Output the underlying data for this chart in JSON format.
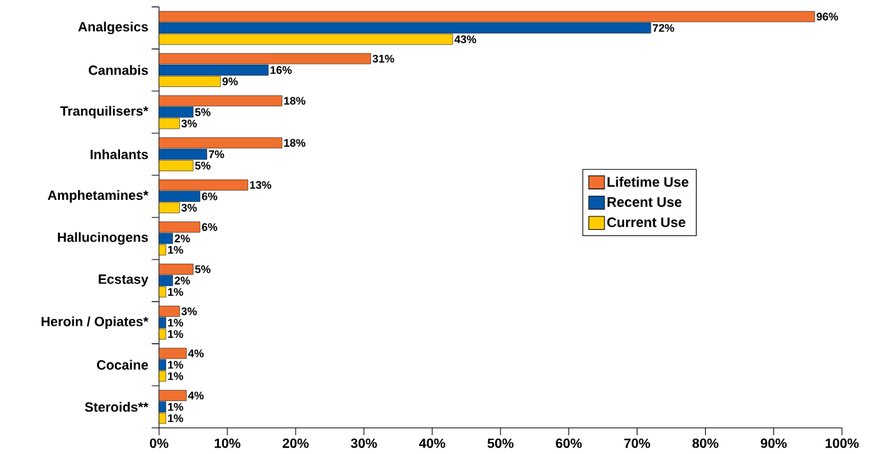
{
  "chart_data": {
    "type": "bar",
    "orientation": "horizontal",
    "categories": [
      "Analgesics",
      "Cannabis",
      "Tranquilisers*",
      "Inhalants",
      "Amphetamines*",
      "Hallucinogens",
      "Ecstasy",
      "Heroin / Opiates*",
      "Cocaine",
      "Steroids**"
    ],
    "series": [
      {
        "name": "Lifetime Use",
        "color": "#f07030",
        "values": [
          96,
          31,
          18,
          18,
          13,
          6,
          5,
          3,
          4,
          4
        ],
        "value_labels": [
          "96%",
          "31%",
          "18%",
          "18%",
          "13%",
          "6%",
          "5%",
          "3%",
          "4%",
          "4%"
        ]
      },
      {
        "name": "Recent Use",
        "color": "#0057a8",
        "values": [
          72,
          16,
          5,
          7,
          6,
          2,
          2,
          1,
          1,
          1
        ],
        "value_labels": [
          "72%",
          "16%",
          "5%",
          "7%",
          "6%",
          "2%",
          "2%",
          "1%",
          "1%",
          "1%"
        ]
      },
      {
        "name": "Current Use",
        "color": "#ffcc00",
        "values": [
          43,
          9,
          3,
          5,
          3,
          1,
          1,
          1,
          1,
          1
        ],
        "value_labels": [
          "43%",
          "9%",
          "3%",
          "5%",
          "3%",
          "1%",
          "1%",
          "1%",
          "1%",
          "1%"
        ]
      }
    ],
    "xlim": [
      0,
      100
    ],
    "xticks": [
      {
        "value": 0,
        "label": "0%"
      },
      {
        "value": 10,
        "label": "10%"
      },
      {
        "value": 20,
        "label": "20%"
      },
      {
        "value": 30,
        "label": "30%"
      },
      {
        "value": 40,
        "label": "40%"
      },
      {
        "value": 50,
        "label": "50%"
      },
      {
        "value": 60,
        "label": "60%"
      },
      {
        "value": 70,
        "label": "70%"
      },
      {
        "value": 80,
        "label": "80%"
      },
      {
        "value": 90,
        "label": "90%"
      },
      {
        "value": 100,
        "label": "100%"
      }
    ],
    "legend": "right",
    "grid": false
  }
}
